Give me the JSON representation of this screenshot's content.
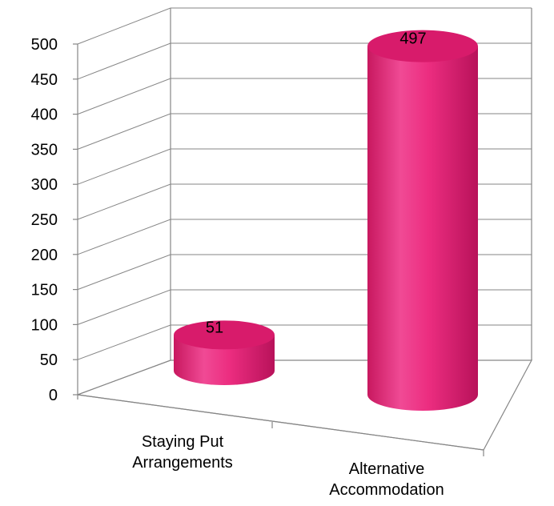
{
  "chart_data": {
    "type": "bar",
    "style": "3d-cylinder",
    "categories": [
      [
        "Staying Put",
        "Arrangements"
      ],
      [
        "Alternative",
        "Accommodation"
      ]
    ],
    "values": [
      51,
      497
    ],
    "data_labels": [
      "51",
      "497"
    ],
    "ylim": [
      0,
      500
    ],
    "yticks": [
      0,
      50,
      100,
      150,
      200,
      250,
      300,
      350,
      400,
      450,
      500
    ],
    "ytick_labels": [
      "0",
      "50",
      "100",
      "150",
      "200",
      "250",
      "300",
      "350",
      "400",
      "450",
      "500"
    ],
    "grid": true,
    "legend": "none",
    "bar_color": "#ec2d80",
    "bar_top_color": "#d81b6b"
  }
}
